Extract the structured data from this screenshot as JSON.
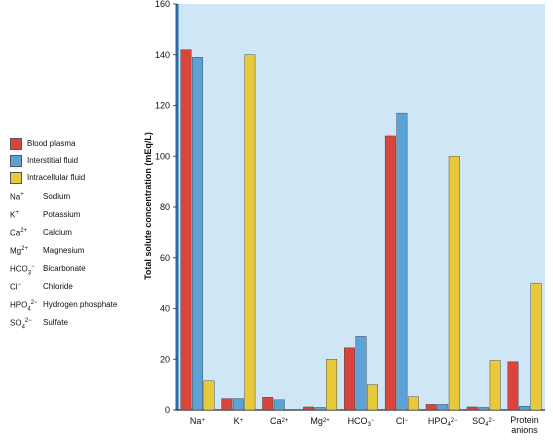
{
  "chart_data": {
    "type": "bar",
    "ylabel": "Total solute concentration (mEq/L)",
    "ylim": [
      0,
      160
    ],
    "yticks": [
      0,
      20,
      40,
      60,
      80,
      100,
      120,
      140,
      160
    ],
    "categories": [
      "Na+",
      "K+",
      "Ca2+",
      "Mg2+",
      "HCO3−",
      "Cl−",
      "HPO4 2−",
      "SO4 2−",
      "Protein anions"
    ],
    "series": [
      {
        "name": "Blood plasma",
        "color": "#d9453c",
        "values": [
          142,
          4.5,
          5,
          1.2,
          24.5,
          108,
          2.2,
          1.2,
          19
        ]
      },
      {
        "name": "Interstitial fluid",
        "color": "#5ba2d6",
        "values": [
          139,
          4.5,
          4,
          1,
          29,
          117,
          2.2,
          1,
          1.5
        ]
      },
      {
        "name": "Intracellular fluid",
        "color": "#e8c93a",
        "values": [
          11.5,
          140,
          0,
          20,
          10,
          5.2,
          100,
          19.5,
          50
        ]
      }
    ],
    "legend_position": "left",
    "grid": false
  },
  "key": [
    {
      "sym": "Na",
      "sup": "+",
      "sub": "",
      "name": "Sodium"
    },
    {
      "sym": "K",
      "sup": "+",
      "sub": "",
      "name": "Potassium"
    },
    {
      "sym": "Ca",
      "sup": "2+",
      "sub": "",
      "name": "Calcium"
    },
    {
      "sym": "Mg",
      "sup": "2+",
      "sub": "",
      "name": "Magnesium"
    },
    {
      "sym": "HCO",
      "sub": "3",
      "sup": "−",
      "name": "Bicarbonate"
    },
    {
      "sym": "Cl",
      "sup": "−",
      "sub": "",
      "name": "Chloride"
    },
    {
      "sym": "HPO",
      "sub": "4",
      "sup": "2−",
      "name": "Hydrogen phosphate"
    },
    {
      "sym": "SO",
      "sub": "4",
      "sup": "2−",
      "name": "Sulfate"
    }
  ],
  "colors": {
    "plot_bg": "#cfe6f7",
    "axis": "#2b6aa6"
  }
}
